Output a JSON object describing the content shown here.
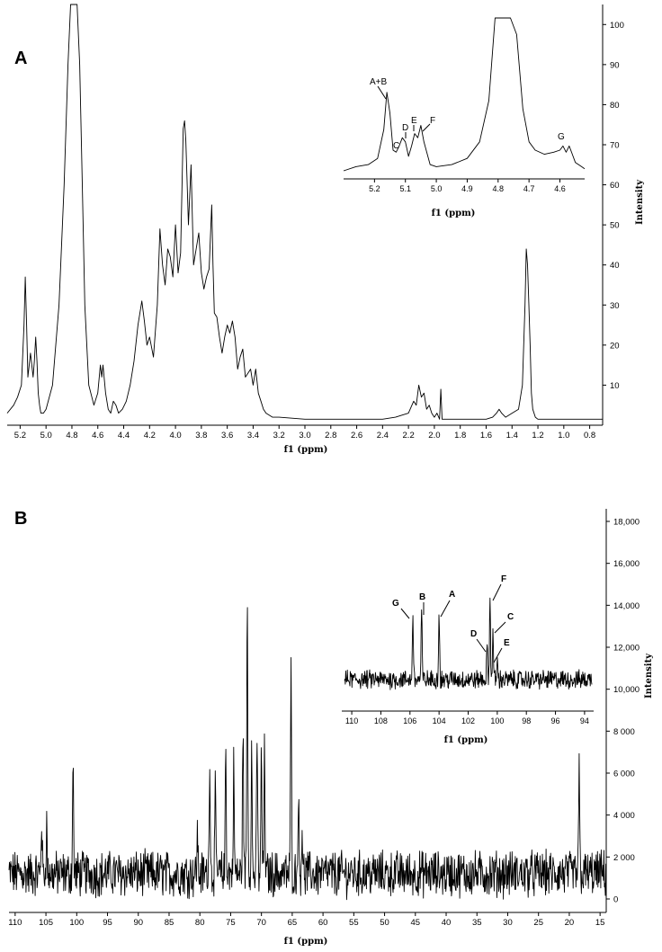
{
  "chart_data": [
    {
      "panel": "A",
      "type": "line",
      "xlabel": "f1 (ppm)",
      "ylabel": "Intensity",
      "x_reversed": true,
      "xlim": [
        5.3,
        0.7
      ],
      "ylim": [
        0,
        105
      ],
      "x_ticks": [
        "5.2",
        "5.0",
        "4.8",
        "4.6",
        "4.4",
        "4.2",
        "4.0",
        "3.8",
        "3.6",
        "3.4",
        "3.2",
        "3.0",
        "2.8",
        "2.6",
        "2.4",
        "2.2",
        "2.0",
        "1.8",
        "1.6",
        "1.4",
        "1.2",
        "1.0",
        "0.8"
      ],
      "y_ticks": [
        "10",
        "20",
        "30",
        "40",
        "50",
        "60",
        "70",
        "80",
        "90",
        "100"
      ],
      "series": [
        {
          "x": [
            5.3,
            5.25,
            5.22,
            5.19,
            5.17,
            5.16,
            5.15,
            5.14,
            5.12,
            5.1,
            5.09,
            5.08,
            5.07,
            5.06,
            5.05,
            5.04,
            5.02,
            5.0,
            4.95,
            4.9,
            4.86,
            4.83,
            4.81,
            4.8,
            4.78,
            4.76,
            4.74,
            4.72,
            4.7,
            4.67,
            4.63,
            4.6,
            4.58,
            4.57,
            4.56,
            4.54,
            4.52,
            4.5,
            4.48,
            4.46,
            4.44,
            4.41,
            4.38,
            4.35,
            4.32,
            4.29,
            4.26,
            4.24,
            4.22,
            4.2,
            4.17,
            4.14,
            4.12,
            4.1,
            4.08,
            4.06,
            4.04,
            4.02,
            4.0,
            3.98,
            3.96,
            3.94,
            3.93,
            3.92,
            3.9,
            3.88,
            3.86,
            3.84,
            3.82,
            3.8,
            3.78,
            3.76,
            3.74,
            3.72,
            3.71,
            3.7,
            3.68,
            3.66,
            3.64,
            3.62,
            3.6,
            3.58,
            3.56,
            3.54,
            3.52,
            3.5,
            3.48,
            3.46,
            3.44,
            3.42,
            3.4,
            3.38,
            3.36,
            3.34,
            3.32,
            3.3,
            3.25,
            3.2,
            3.0,
            2.8,
            2.6,
            2.4,
            2.3,
            2.2,
            2.16,
            2.14,
            2.12,
            2.1,
            2.08,
            2.06,
            2.04,
            2.02,
            2.0,
            1.98,
            1.96,
            1.95,
            1.94,
            1.92,
            1.9,
            1.8,
            1.7,
            1.6,
            1.55,
            1.52,
            1.5,
            1.48,
            1.45,
            1.4,
            1.35,
            1.32,
            1.3,
            1.29,
            1.28,
            1.27,
            1.26,
            1.25,
            1.24,
            1.22,
            1.2,
            1.15,
            1.1,
            1.0,
            0.9,
            0.8,
            0.7
          ],
          "y": [
            3,
            5,
            7,
            10,
            25,
            37,
            25,
            12,
            18,
            12,
            16,
            22,
            16,
            8,
            5,
            3,
            3,
            4,
            10,
            30,
            60,
            90,
            105,
            105,
            105,
            105,
            90,
            60,
            30,
            10,
            5,
            8,
            15,
            12,
            15,
            8,
            4,
            3,
            6,
            5,
            3,
            4,
            6,
            10,
            16,
            25,
            31,
            26,
            20,
            22,
            17,
            30,
            49,
            40,
            35,
            44,
            42,
            37,
            50,
            38,
            43,
            74,
            76,
            71,
            50,
            65,
            40,
            44,
            48,
            38,
            34,
            37,
            39,
            55,
            40,
            28,
            27,
            22,
            18,
            22,
            25,
            23,
            26,
            22,
            14,
            17,
            19,
            12,
            13,
            14,
            10,
            14,
            8,
            6,
            4,
            3,
            2,
            2,
            1.5,
            1.5,
            1.5,
            1.5,
            2,
            3,
            6,
            5,
            10,
            7,
            8,
            4,
            5,
            3,
            2,
            3,
            1.5,
            9,
            1.5,
            1.5,
            1.5,
            1.5,
            1.5,
            1.5,
            2,
            3,
            4,
            3,
            2,
            3,
            4,
            10,
            30,
            44,
            40,
            30,
            20,
            8,
            4,
            2,
            1.5,
            1.5,
            1.5,
            1.5,
            1.5,
            1.5,
            1.5
          ]
        }
      ],
      "inset": {
        "xlabel": "f1 (ppm)",
        "x_reversed": true,
        "xlim": [
          5.3,
          4.52
        ],
        "ylim": [
          63,
          100
        ],
        "x_ticks": [
          "5.2",
          "5.1",
          "5.0",
          "4.9",
          "4.8",
          "4.7",
          "4.6"
        ],
        "annotations": [
          "A+B",
          "C",
          "D",
          "E",
          "F",
          "G"
        ],
        "series": [
          {
            "x": [
              5.3,
              5.26,
              5.22,
              5.19,
              5.17,
              5.16,
              5.15,
              5.14,
              5.13,
              5.12,
              5.11,
              5.1,
              5.09,
              5.08,
              5.07,
              5.06,
              5.05,
              5.04,
              5.02,
              5.0,
              4.95,
              4.9,
              4.86,
              4.83,
              4.81,
              4.8,
              4.78,
              4.76,
              4.74,
              4.72,
              4.7,
              4.68,
              4.65,
              4.62,
              4.6,
              4.59,
              4.58,
              4.57,
              4.56,
              4.55,
              4.53,
              4.52
            ],
            "y": [
              63,
              64,
              64.5,
              66,
              73,
              82,
              77,
              68,
              67.5,
              69,
              71,
              70,
              66.5,
              69,
              72,
              71,
              74,
              70,
              64.5,
              64,
              64.5,
              66,
              70,
              80,
              100,
              100,
              100,
              100,
              96,
              78,
              70,
              68,
              67,
              67.5,
              68,
              69,
              67.5,
              69,
              67,
              65,
              64,
              63.5
            ]
          }
        ]
      }
    },
    {
      "panel": "B",
      "type": "line",
      "xlabel": "f1 (ppm)",
      "ylabel": "Intensity",
      "x_reversed": true,
      "xlim": [
        111,
        14
      ],
      "ylim": [
        -800,
        19000
      ],
      "x_ticks": [
        "110",
        "105",
        "100",
        "95",
        "90",
        "85",
        "80",
        "75",
        "70",
        "65",
        "60",
        "55",
        "50",
        "45",
        "40",
        "35",
        "30",
        "25",
        "20",
        "15"
      ],
      "y_ticks": [
        "0",
        "2 000",
        "4 000",
        "6 000",
        "8 000",
        "10,000",
        "12,000",
        "14,000",
        "16,000",
        "18,000"
      ],
      "noise_level": 1200,
      "peaks": [
        {
          "x": 105.7,
          "y": 3800
        },
        {
          "x": 104.9,
          "y": 3600
        },
        {
          "x": 100.6,
          "y": 6400
        },
        {
          "x": 80.4,
          "y": 3200
        },
        {
          "x": 78.4,
          "y": 7000
        },
        {
          "x": 77.5,
          "y": 5000
        },
        {
          "x": 75.8,
          "y": 7200
        },
        {
          "x": 74.5,
          "y": 6300
        },
        {
          "x": 73.0,
          "y": 8200
        },
        {
          "x": 72.3,
          "y": 14300
        },
        {
          "x": 71.6,
          "y": 7100
        },
        {
          "x": 70.7,
          "y": 7700
        },
        {
          "x": 70.0,
          "y": 6900
        },
        {
          "x": 69.5,
          "y": 6900
        },
        {
          "x": 65.2,
          "y": 10700
        },
        {
          "x": 64.0,
          "y": 5200
        },
        {
          "x": 63.4,
          "y": 3500
        },
        {
          "x": 18.4,
          "y": 6000
        }
      ],
      "inset": {
        "xlabel": "f1 (ppm)",
        "x_reversed": true,
        "xlim": [
          110.5,
          93.5
        ],
        "ylim": [
          8500,
          14600
        ],
        "x_ticks": [
          "110",
          "108",
          "106",
          "104",
          "102",
          "100",
          "98",
          "96",
          "94"
        ],
        "noise_center": 9800,
        "noise_level": 450,
        "annotations": [
          "G",
          "B",
          "A",
          "D",
          "F",
          "C",
          "E"
        ],
        "peaks": [
          {
            "x": 105.8,
            "y": 13500
          },
          {
            "x": 105.2,
            "y": 13500
          },
          {
            "x": 104.0,
            "y": 13600
          },
          {
            "x": 100.7,
            "y": 11600
          },
          {
            "x": 100.5,
            "y": 14100
          },
          {
            "x": 100.3,
            "y": 12400
          },
          {
            "x": 100.0,
            "y": 10900
          }
        ]
      }
    }
  ],
  "labels": {
    "panel_a": "A",
    "panel_b": "B",
    "xlabel_a": "f1 (ppm)",
    "xlabel_b": "f1 (ppm)",
    "ylabel_a": "Intensity",
    "ylabel_b": "Intensity",
    "inset_a_xlabel": "f1 (ppm)",
    "inset_b_xlabel": "f1 (ppm)",
    "inset_a_peaks": {
      "ab": "A+B",
      "c": "C",
      "d": "D",
      "e": "E",
      "f": "F",
      "g": "G"
    },
    "inset_b_peaks": {
      "g": "G",
      "b": "B",
      "a": "A",
      "d": "D",
      "f": "F",
      "c": "C",
      "e": "E"
    }
  }
}
